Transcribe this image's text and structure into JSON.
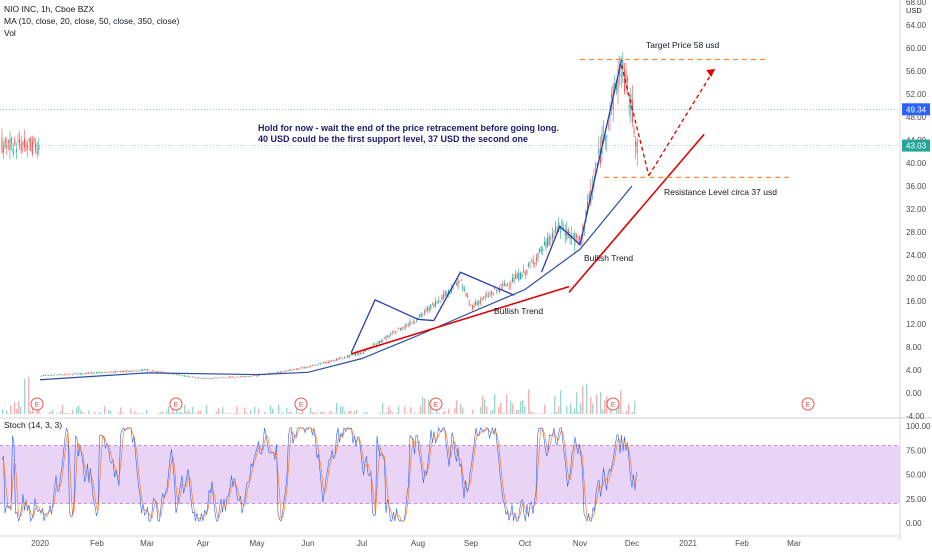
{
  "header": {
    "symbol_line": "NIO INC, 1h, Cboe BZX",
    "ma_line": "MA (10, close, 20, close, 50, close, 350, close)",
    "vol_label": "Vol",
    "stoch_label": "Stoch (14, 3, 3)",
    "currency": "USD"
  },
  "chart_data": [
    {
      "type": "line",
      "title": "",
      "ylabel": "USD",
      "ylim": [
        -4,
        68
      ],
      "y_ticks": [
        "68.00",
        "64.00",
        "60.00",
        "56.00",
        "52.00",
        "48.00",
        "44.00",
        "40.00",
        "36.00",
        "32.00",
        "28.00",
        "24.00",
        "20.00",
        "16.00",
        "12.00",
        "8.00",
        "4.00",
        "0.00",
        "-4.00"
      ],
      "x_labels": [
        "2020",
        "Feb",
        "Mar",
        "Apr",
        "May",
        "Jun",
        "Jul",
        "Aug",
        "Sep",
        "Oct",
        "Nov",
        "Dec",
        "2021",
        "Feb",
        "Mar"
      ],
      "series": [
        {
          "name": "",
          "x": [
            "2020-01",
            "2020-02",
            "2020-03",
            "2020-04",
            "2020-05",
            "2020-06",
            "2020-07",
            "2020-08",
            "2020-08-25",
            "2020-09",
            "2020-10",
            "2020-10-20",
            "2020-11",
            "2020-11-15",
            "2020-11-25",
            "2020-12-01",
            "2020-12-04"
          ],
          "y": [
            3.0,
            3.5,
            4.0,
            2.5,
            3.0,
            4.5,
            7.0,
            13.0,
            19.5,
            15.0,
            21.0,
            29.0,
            26.0,
            45.0,
            57.0,
            49.0,
            43.0
          ]
        },
        {
          "name": "",
          "x": [
            "2020-01",
            "2020-03",
            "2020-05",
            "2020-06",
            "2020-07",
            "2020-08",
            "2020-09",
            "2020-10",
            "2020-11",
            "2020-12"
          ],
          "y": [
            2.3,
            3.5,
            3.2,
            3.6,
            6.0,
            10.0,
            14.0,
            18.0,
            25.0,
            36.0
          ]
        }
      ],
      "price_badges": [
        {
          "value": "49.34",
          "color": "#2962ff"
        },
        {
          "value": "43.03",
          "color": "#26a69a"
        }
      ],
      "annotations": [
        "Target Price 58 usd",
        "Resistance Level circa 37 usd",
        "Bullish Trend",
        "Bullish Trend",
        "Hold for now - wait the end of the price retracement before going long.",
        "40 USD could be the first support level, 37 USD the second one"
      ],
      "levels": [
        58,
        37.5
      ],
      "earnings_marker": "E",
      "grid": true,
      "legend": "none"
    },
    {
      "type": "line",
      "title": "Stoch (14, 3, 3)",
      "ylim": [
        0,
        100
      ],
      "y_ticks": [
        "100.00",
        "75.00",
        "50.00",
        "25.00",
        "0.00"
      ],
      "band": [
        20,
        80
      ],
      "series": [
        {
          "name": "",
          "color": "#2962ff"
        },
        {
          "name": "",
          "color": "#ff6d00"
        }
      ]
    }
  ],
  "colors": {
    "candle_up": "#26a69a",
    "candle_down": "#ef5350",
    "trend_line": "#e00000",
    "pattern_line": "#2a3bb0",
    "ma_line": "#2a4fa0",
    "level_line": "#f08a3c",
    "stoch_band": "#e6ccf5"
  }
}
